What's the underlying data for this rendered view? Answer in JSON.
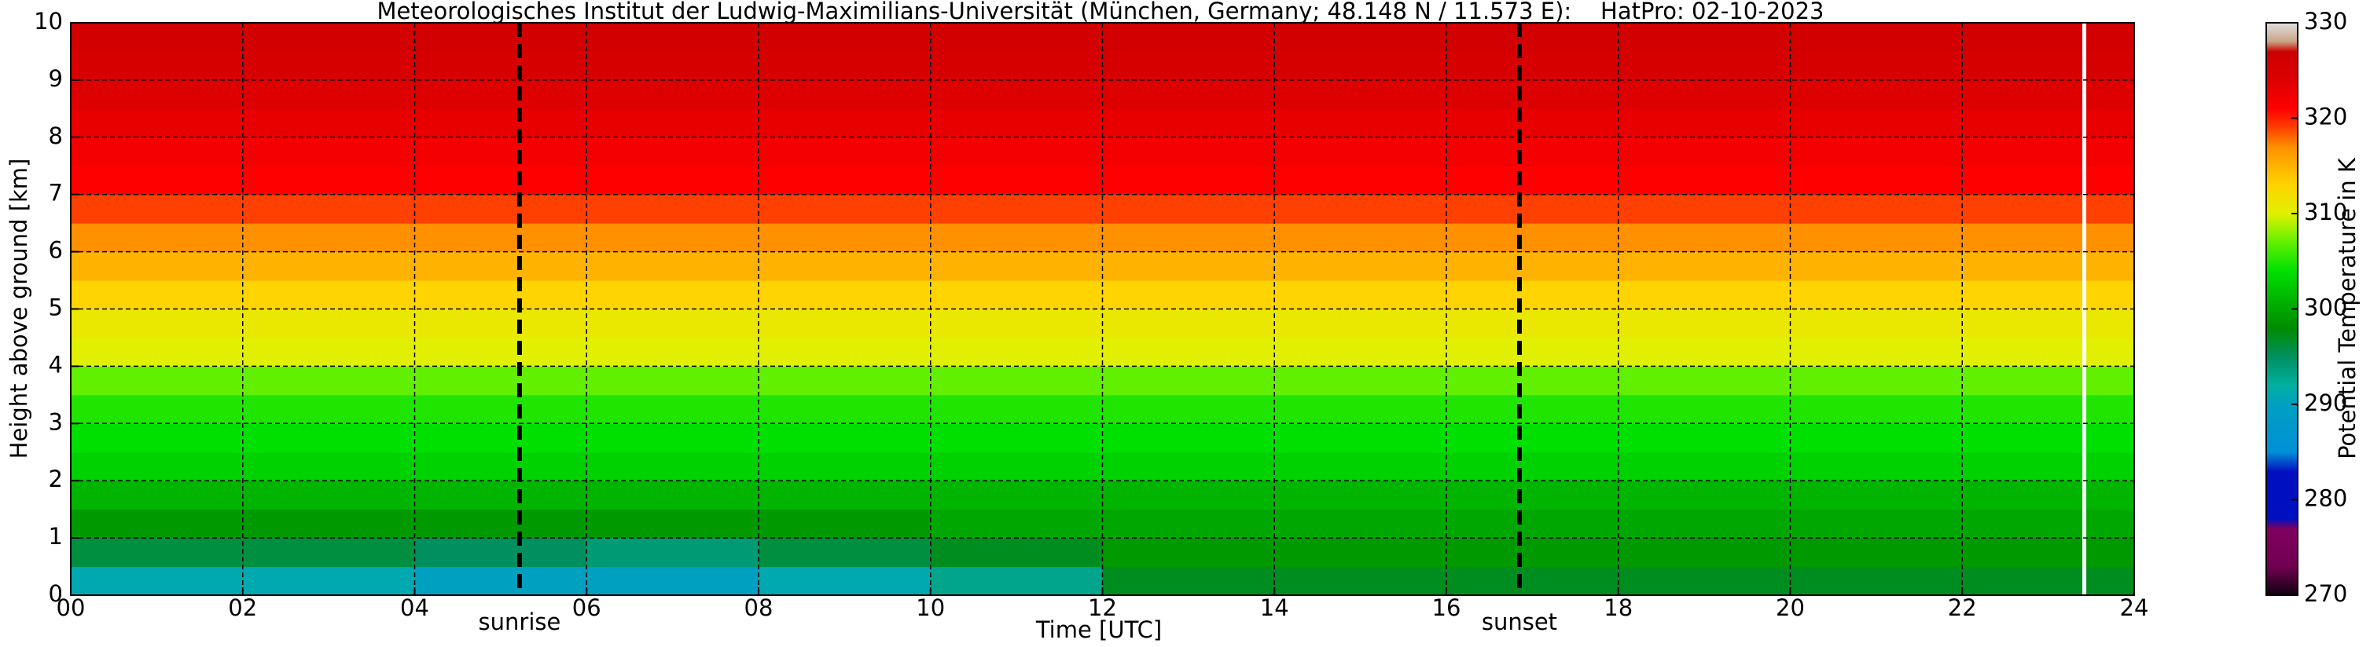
{
  "chart_data": {
    "type": "heatmap",
    "title": "Meteorologisches Institut der Ludwig-Maximilians-Universität (München, Germany; 48.148 N / 11.573 E):    HatPro: 02-10-2023",
    "xlabel": "Time [UTC]",
    "ylabel": "Height above ground [km]",
    "colorbar_label": "Potential Temperature in K",
    "xlim": [
      0,
      24
    ],
    "ylim": [
      0,
      10
    ],
    "xticks": [
      {
        "value": 0,
        "label": "00"
      },
      {
        "value": 2,
        "label": "02"
      },
      {
        "value": 4,
        "label": "04"
      },
      {
        "value": 6,
        "label": "06"
      },
      {
        "value": 8,
        "label": "08"
      },
      {
        "value": 10,
        "label": "10"
      },
      {
        "value": 12,
        "label": "12"
      },
      {
        "value": 14,
        "label": "14"
      },
      {
        "value": 16,
        "label": "16"
      },
      {
        "value": 18,
        "label": "18"
      },
      {
        "value": 20,
        "label": "20"
      },
      {
        "value": 22,
        "label": "22"
      },
      {
        "value": 24,
        "label": "24"
      }
    ],
    "yticks": [
      0,
      1,
      2,
      3,
      4,
      5,
      6,
      7,
      8,
      9,
      10
    ],
    "grid": true,
    "x_bins": [
      0,
      2,
      4,
      6,
      8,
      10,
      12,
      14,
      16,
      18,
      20,
      22,
      24
    ],
    "y_bins": [
      0,
      0.5,
      1,
      1.5,
      2,
      2.5,
      3,
      3.5,
      4,
      4.5,
      5,
      5.5,
      6,
      6.5,
      7,
      7.5,
      8,
      8.5,
      9,
      9.5,
      10
    ],
    "values": [
      [
        291,
        291,
        290,
        290,
        291,
        293,
        297,
        297,
        297,
        297,
        297,
        297
      ],
      [
        296,
        296,
        295,
        294,
        296,
        297,
        299,
        299,
        299,
        299,
        299,
        299
      ],
      [
        299,
        299,
        299,
        299,
        299,
        300,
        300,
        300,
        300,
        300,
        300,
        300
      ],
      [
        301,
        301,
        301,
        301,
        301,
        301,
        301,
        301,
        301,
        301,
        301,
        301
      ],
      [
        303,
        303,
        303,
        303,
        303,
        303,
        303,
        303,
        303,
        303,
        303,
        303
      ],
      [
        304,
        304,
        304,
        304,
        304,
        304,
        304,
        304,
        304,
        304,
        304,
        304
      ],
      [
        305,
        305,
        305,
        305,
        305,
        305,
        305,
        305,
        305,
        305,
        305,
        305
      ],
      [
        307,
        307,
        307,
        307,
        307,
        307,
        307,
        307,
        307,
        307,
        307,
        307
      ],
      [
        310,
        310,
        310,
        310,
        310,
        310,
        310,
        310,
        310,
        310,
        310,
        310
      ],
      [
        311,
        311,
        311,
        311,
        311,
        311,
        311,
        311,
        311,
        311,
        311,
        311
      ],
      [
        313,
        313,
        313,
        313,
        313,
        313,
        313,
        313,
        313,
        313,
        313,
        313
      ],
      [
        315,
        315,
        315,
        315,
        315,
        315,
        315,
        315,
        315,
        315,
        315,
        315
      ],
      [
        317,
        317,
        317,
        317,
        317,
        317,
        317,
        317,
        317,
        317,
        317,
        317
      ],
      [
        319,
        319,
        319,
        319,
        319,
        319,
        319,
        319,
        319,
        319,
        319,
        319
      ],
      [
        321,
        321,
        321,
        321,
        321,
        321,
        321,
        321,
        321,
        321,
        321,
        321
      ],
      [
        322,
        322,
        322,
        322,
        322,
        322,
        322,
        322,
        322,
        322,
        322,
        322
      ],
      [
        323,
        323,
        323,
        323,
        323,
        323,
        323,
        323,
        323,
        323,
        323,
        323
      ],
      [
        324,
        324,
        324,
        324,
        324,
        324,
        324,
        324,
        324,
        324,
        324,
        324
      ],
      [
        325,
        325,
        325,
        325,
        325,
        325,
        325,
        325,
        325,
        325,
        325,
        325
      ],
      [
        326,
        326,
        326,
        326,
        326,
        326,
        326,
        326,
        326,
        326,
        326,
        326
      ]
    ],
    "clim": [
      270,
      330
    ],
    "cticks": [
      270,
      280,
      290,
      300,
      310,
      320,
      330
    ],
    "colorscale": [
      {
        "value": 270,
        "color": "#100010"
      },
      {
        "value": 273,
        "color": "#700050"
      },
      {
        "value": 277,
        "color": "#800060"
      },
      {
        "value": 278,
        "color": "#0010c0"
      },
      {
        "value": 283,
        "color": "#0010c0"
      },
      {
        "value": 285,
        "color": "#0090d8"
      },
      {
        "value": 290,
        "color": "#00a0c0"
      },
      {
        "value": 292,
        "color": "#00b0a0"
      },
      {
        "value": 295,
        "color": "#009060"
      },
      {
        "value": 298,
        "color": "#008c00"
      },
      {
        "value": 301,
        "color": "#00b400"
      },
      {
        "value": 304,
        "color": "#00e000"
      },
      {
        "value": 307,
        "color": "#60f000"
      },
      {
        "value": 310,
        "color": "#e0f000"
      },
      {
        "value": 313,
        "color": "#ffd400"
      },
      {
        "value": 317,
        "color": "#ff9000"
      },
      {
        "value": 319,
        "color": "#ff4000"
      },
      {
        "value": 321,
        "color": "#ff0000"
      },
      {
        "value": 324,
        "color": "#dd0000"
      },
      {
        "value": 327,
        "color": "#cc0000"
      },
      {
        "value": 328,
        "color": "#c8a080"
      },
      {
        "value": 330,
        "color": "#e0e0e0"
      }
    ],
    "annotations": [
      {
        "text": "sunrise",
        "x": 5.22
      },
      {
        "text": "sunset",
        "x": 16.85
      }
    ],
    "missing_data_times": [
      23.42
    ]
  }
}
